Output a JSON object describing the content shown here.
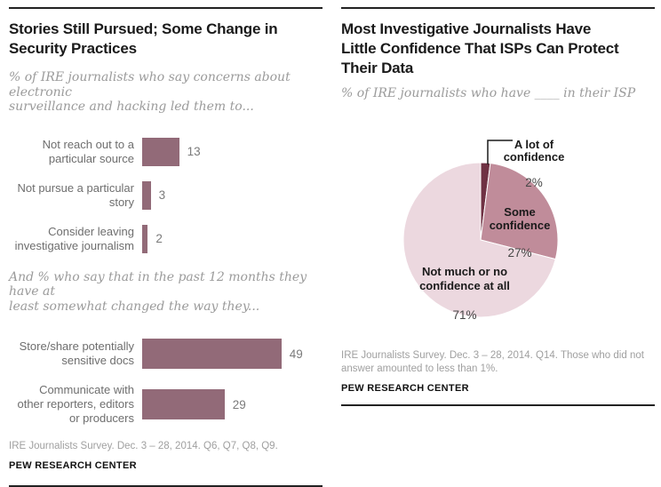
{
  "left_panel": {
    "title": "Stories Still Pursued; Some Change in\nSecurity Practices",
    "subtitle": "% of IRE journalists who say concerns about electronic\nsurveillance and hacking led them to...",
    "subtitle2": "And % who say that in the past 12 months they have at\nleast somewhat changed the way they...",
    "source": "IRE Journalists Survey. Dec. 3 – 28, 2014. Q6, Q7, Q8, Q9.",
    "brand": "PEW RESEARCH CENTER"
  },
  "right_panel": {
    "title": "Most Investigative Journalists Have\nLittle Confidence That ISPs Can Protect\nTheir Data",
    "subtitle": "% of IRE journalists who have ____ in their ISP",
    "source": "IRE Journalists Survey. Dec. 3 – 28, 2014. Q14. Those who did not\nanswer amounted to less than 1%.",
    "brand": "PEW RESEARCH CENTER",
    "pie_labels": {
      "a_lot": {
        "text": "A lot of\nconfidence",
        "pct": "2%"
      },
      "some": {
        "text": "Some\nconfidence",
        "pct": "27%"
      },
      "not_much": {
        "text": "Not much or no\nconfidence at all",
        "pct": "71%"
      }
    }
  },
  "colors": {
    "bar": "#926a78",
    "pie_a_lot": "#6f3143",
    "pie_some": "#c08c9a",
    "pie_not_much": "#ecd8df",
    "rule": "#222222",
    "title_text": "#1a1a1a",
    "subtitle_text": "#9b9b9b",
    "bar_label_text": "#6e6e6e",
    "bar_value_text": "#7b7b7b",
    "source_text": "#a0a0a0"
  },
  "chart_data": [
    {
      "type": "bar",
      "orientation": "horizontal",
      "unit": "%",
      "title": "Stories Still Pursued; Some Change in Security Practices",
      "xlim": [
        0,
        52
      ],
      "bar_color": "#926a78",
      "groups": [
        {
          "subtitle": "% of IRE journalists who say concerns about electronic surveillance and hacking led them to...",
          "categories": [
            "Not reach out to a\nparticular source",
            "Not pursue a particular\nstory",
            "Consider leaving\ninvestigative journalism"
          ],
          "values": [
            13,
            3,
            2
          ]
        },
        {
          "subtitle": "And % who say that in the past 12 months they have at least somewhat changed the way they...",
          "categories": [
            "Store/share potentially\nsensitive docs",
            "Communicate with\nother reporters, editors\nor producers"
          ],
          "values": [
            49,
            29
          ]
        }
      ]
    },
    {
      "type": "pie",
      "unit": "%",
      "title": "Most Investigative Journalists Have Little Confidence That ISPs Can Protect Their Data",
      "labels": [
        "A lot of confidence",
        "Some confidence",
        "Not much or no confidence at all"
      ],
      "values": [
        2,
        27,
        71
      ],
      "colors": [
        "#6f3143",
        "#c08c9a",
        "#ecd8df"
      ],
      "start_angle_deg": -90,
      "direction": "clockwise"
    }
  ]
}
